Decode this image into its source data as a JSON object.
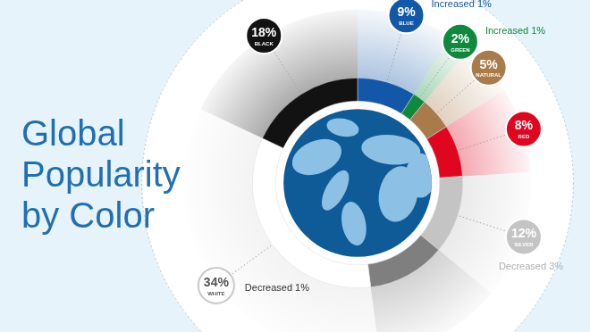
{
  "chart_data": {
    "type": "doughnut",
    "title": "Global Popularity by Color",
    "categories": [
      "BLUE",
      "GREEN",
      "NATURAL",
      "RED",
      "SILVER",
      null,
      "WHITE",
      "BLACK"
    ],
    "values": [
      9,
      2,
      5,
      8,
      12,
      12,
      34,
      18
    ],
    "value_labels": [
      "9%",
      "2%",
      "5%",
      "8%",
      "12%",
      null,
      "34%",
      "18%"
    ],
    "colors": [
      "#1357a8",
      "#0f8a3c",
      "#a97b4b",
      "#e0061f",
      "#c4c4c4",
      "#7f7f7f",
      "#ffffff",
      "#121212"
    ],
    "annotations": [
      "Increased 1%",
      "Increased 1%",
      null,
      null,
      "Decreased 3%",
      null,
      "Decreased 1%",
      null
    ],
    "data_labels": true,
    "legend": false
  }
}
